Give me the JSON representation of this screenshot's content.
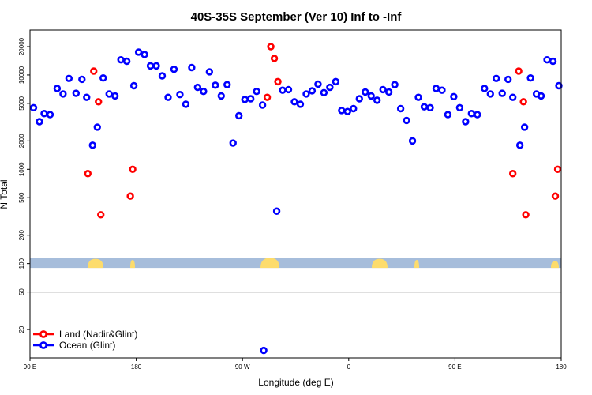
{
  "chart_data": {
    "type": "scatter",
    "title": "40S-35S September (Ver 10)   Inf to -Inf",
    "xlabel": "Longitude (deg E)",
    "ylabel": "N Total",
    "y_scale": "log",
    "xlim": [
      90,
      540
    ],
    "ylim": [
      10,
      30000
    ],
    "x_ticks": [
      {
        "value": 90,
        "label": "90 E"
      },
      {
        "value": 180,
        "label": "180"
      },
      {
        "value": 270,
        "label": "90 W"
      },
      {
        "value": 360,
        "label": "0"
      },
      {
        "value": 450,
        "label": "90 E"
      },
      {
        "value": 540,
        "label": "180"
      }
    ],
    "y_ticks": [
      {
        "value": 20,
        "label": "20"
      },
      {
        "value": 50,
        "label": "50"
      },
      {
        "value": 100,
        "label": "100"
      },
      {
        "value": 200,
        "label": "200"
      },
      {
        "value": 500,
        "label": "500"
      },
      {
        "value": 1000,
        "label": "1000"
      },
      {
        "value": 2000,
        "label": "2000"
      },
      {
        "value": 5000,
        "label": "5000"
      },
      {
        "value": 10000,
        "label": "10000"
      },
      {
        "value": 20000,
        "label": "20000"
      }
    ],
    "reference_line": 50,
    "map_band": {
      "y_min": 90,
      "y_max": 115,
      "ocean_color": "#a6bddb",
      "land_color": "#fddc6c"
    },
    "legend": {
      "position": "bottom-left"
    },
    "series": [
      {
        "name": "Land (Nadir&Glint)",
        "color": "#ff0000",
        "points": [
          [
            139,
            900
          ],
          [
            144,
            11000
          ],
          [
            148,
            5200
          ],
          [
            150,
            330
          ],
          [
            175,
            520
          ],
          [
            177,
            1000
          ],
          [
            291,
            5800
          ],
          [
            294,
            20000
          ],
          [
            297,
            15000
          ],
          [
            300,
            8500
          ],
          [
            499,
            900
          ],
          [
            504,
            11000
          ],
          [
            508,
            5200
          ],
          [
            510,
            330
          ],
          [
            535,
            520
          ],
          [
            537,
            1000
          ]
        ]
      },
      {
        "name": "Ocean (Glint)",
        "color": "#0000ff",
        "points": [
          [
            93,
            4500
          ],
          [
            98,
            3200
          ],
          [
            102,
            3900
          ],
          [
            107,
            3800
          ],
          [
            113,
            7200
          ],
          [
            118,
            6300
          ],
          [
            123,
            9200
          ],
          [
            129,
            6400
          ],
          [
            134,
            9000
          ],
          [
            138,
            5800
          ],
          [
            143,
            1800
          ],
          [
            147,
            2800
          ],
          [
            152,
            9300
          ],
          [
            157,
            6300
          ],
          [
            162,
            6000
          ],
          [
            167,
            14500
          ],
          [
            172,
            14000
          ],
          [
            178,
            7700
          ],
          [
            182,
            17500
          ],
          [
            187,
            16500
          ],
          [
            192,
            12500
          ],
          [
            197,
            12500
          ],
          [
            202,
            9800
          ],
          [
            207,
            5800
          ],
          [
            212,
            11500
          ],
          [
            217,
            6200
          ],
          [
            222,
            4900
          ],
          [
            227,
            12000
          ],
          [
            232,
            7400
          ],
          [
            237,
            6700
          ],
          [
            242,
            10800
          ],
          [
            247,
            7800
          ],
          [
            252,
            6000
          ],
          [
            257,
            7900
          ],
          [
            262,
            1900
          ],
          [
            267,
            3700
          ],
          [
            272,
            5500
          ],
          [
            277,
            5600
          ],
          [
            282,
            6700
          ],
          [
            287,
            4800
          ],
          [
            288,
            12
          ],
          [
            299,
            360
          ],
          [
            304,
            6900
          ],
          [
            309,
            7000
          ],
          [
            314,
            5200
          ],
          [
            319,
            4900
          ],
          [
            324,
            6300
          ],
          [
            329,
            6800
          ],
          [
            334,
            8000
          ],
          [
            339,
            6500
          ],
          [
            344,
            7400
          ],
          [
            349,
            8500
          ],
          [
            354,
            4200
          ],
          [
            359,
            4100
          ],
          [
            364,
            4400
          ],
          [
            369,
            5600
          ],
          [
            374,
            6600
          ],
          [
            379,
            6000
          ],
          [
            384,
            5400
          ],
          [
            389,
            7000
          ],
          [
            394,
            6600
          ],
          [
            399,
            7900
          ],
          [
            404,
            4400
          ],
          [
            409,
            3300
          ],
          [
            414,
            2000
          ],
          [
            419,
            5800
          ],
          [
            424,
            4600
          ],
          [
            429,
            4500
          ],
          [
            434,
            7200
          ],
          [
            439,
            6900
          ],
          [
            444,
            3800
          ],
          [
            449,
            5900
          ],
          [
            454,
            4500
          ],
          [
            459,
            3200
          ],
          [
            464,
            3900
          ],
          [
            469,
            3800
          ],
          [
            475,
            7200
          ],
          [
            480,
            6300
          ],
          [
            485,
            9200
          ],
          [
            490,
            6400
          ],
          [
            495,
            9000
          ],
          [
            499,
            5800
          ],
          [
            505,
            1800
          ],
          [
            509,
            2800
          ],
          [
            514,
            9300
          ],
          [
            519,
            6300
          ],
          [
            523,
            6000
          ],
          [
            528,
            14500
          ],
          [
            533,
            14000
          ],
          [
            538,
            7700
          ]
        ]
      }
    ]
  }
}
